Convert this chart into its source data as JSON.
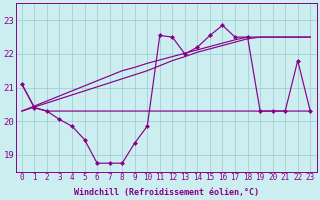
{
  "background_color": "#cceef0",
  "line_color": "#880088",
  "grid_color": "#99cccc",
  "xlabel": "Windchill (Refroidissement éolien,°C)",
  "x_ticks": [
    0,
    1,
    2,
    3,
    4,
    5,
    6,
    7,
    8,
    9,
    10,
    11,
    12,
    13,
    14,
    15,
    16,
    17,
    18,
    19,
    20,
    21,
    22,
    23
  ],
  "y_ticks": [
    19,
    20,
    21,
    22,
    23
  ],
  "ylim_min": 18.5,
  "ylim_max": 23.5,
  "series_main": [
    21.1,
    20.4,
    20.3,
    20.05,
    19.85,
    19.45,
    18.75,
    18.75,
    18.75,
    19.35,
    19.85,
    22.55,
    22.5,
    22.0,
    22.2,
    22.55,
    22.85,
    22.5,
    22.5,
    20.3,
    20.3,
    20.3,
    21.8,
    20.3
  ],
  "series_flat": [
    21.1,
    20.4,
    20.3,
    20.3,
    20.3,
    20.3,
    20.3,
    20.3,
    20.3,
    20.3,
    20.3,
    20.3,
    20.3,
    20.3,
    20.3,
    20.3,
    20.3,
    20.3,
    20.3,
    20.3,
    20.3,
    20.3,
    20.3,
    20.3
  ],
  "series_rising1": [
    20.3,
    20.42,
    20.54,
    20.66,
    20.78,
    20.9,
    21.02,
    21.14,
    21.26,
    21.38,
    21.5,
    21.65,
    21.8,
    21.92,
    22.05,
    22.15,
    22.25,
    22.35,
    22.45,
    22.5,
    22.5,
    22.5,
    22.5,
    22.5
  ],
  "series_rising2": [
    20.3,
    20.45,
    20.6,
    20.75,
    20.9,
    21.05,
    21.2,
    21.35,
    21.5,
    21.6,
    21.72,
    21.82,
    21.92,
    22.02,
    22.12,
    22.22,
    22.32,
    22.42,
    22.5,
    22.5,
    22.5,
    22.5,
    22.5,
    22.5
  ],
  "marker_style": "D",
  "marker_size": 2.5,
  "line_width": 0.85,
  "tick_fontsize": 5.5,
  "xlabel_fontsize": 6.0
}
